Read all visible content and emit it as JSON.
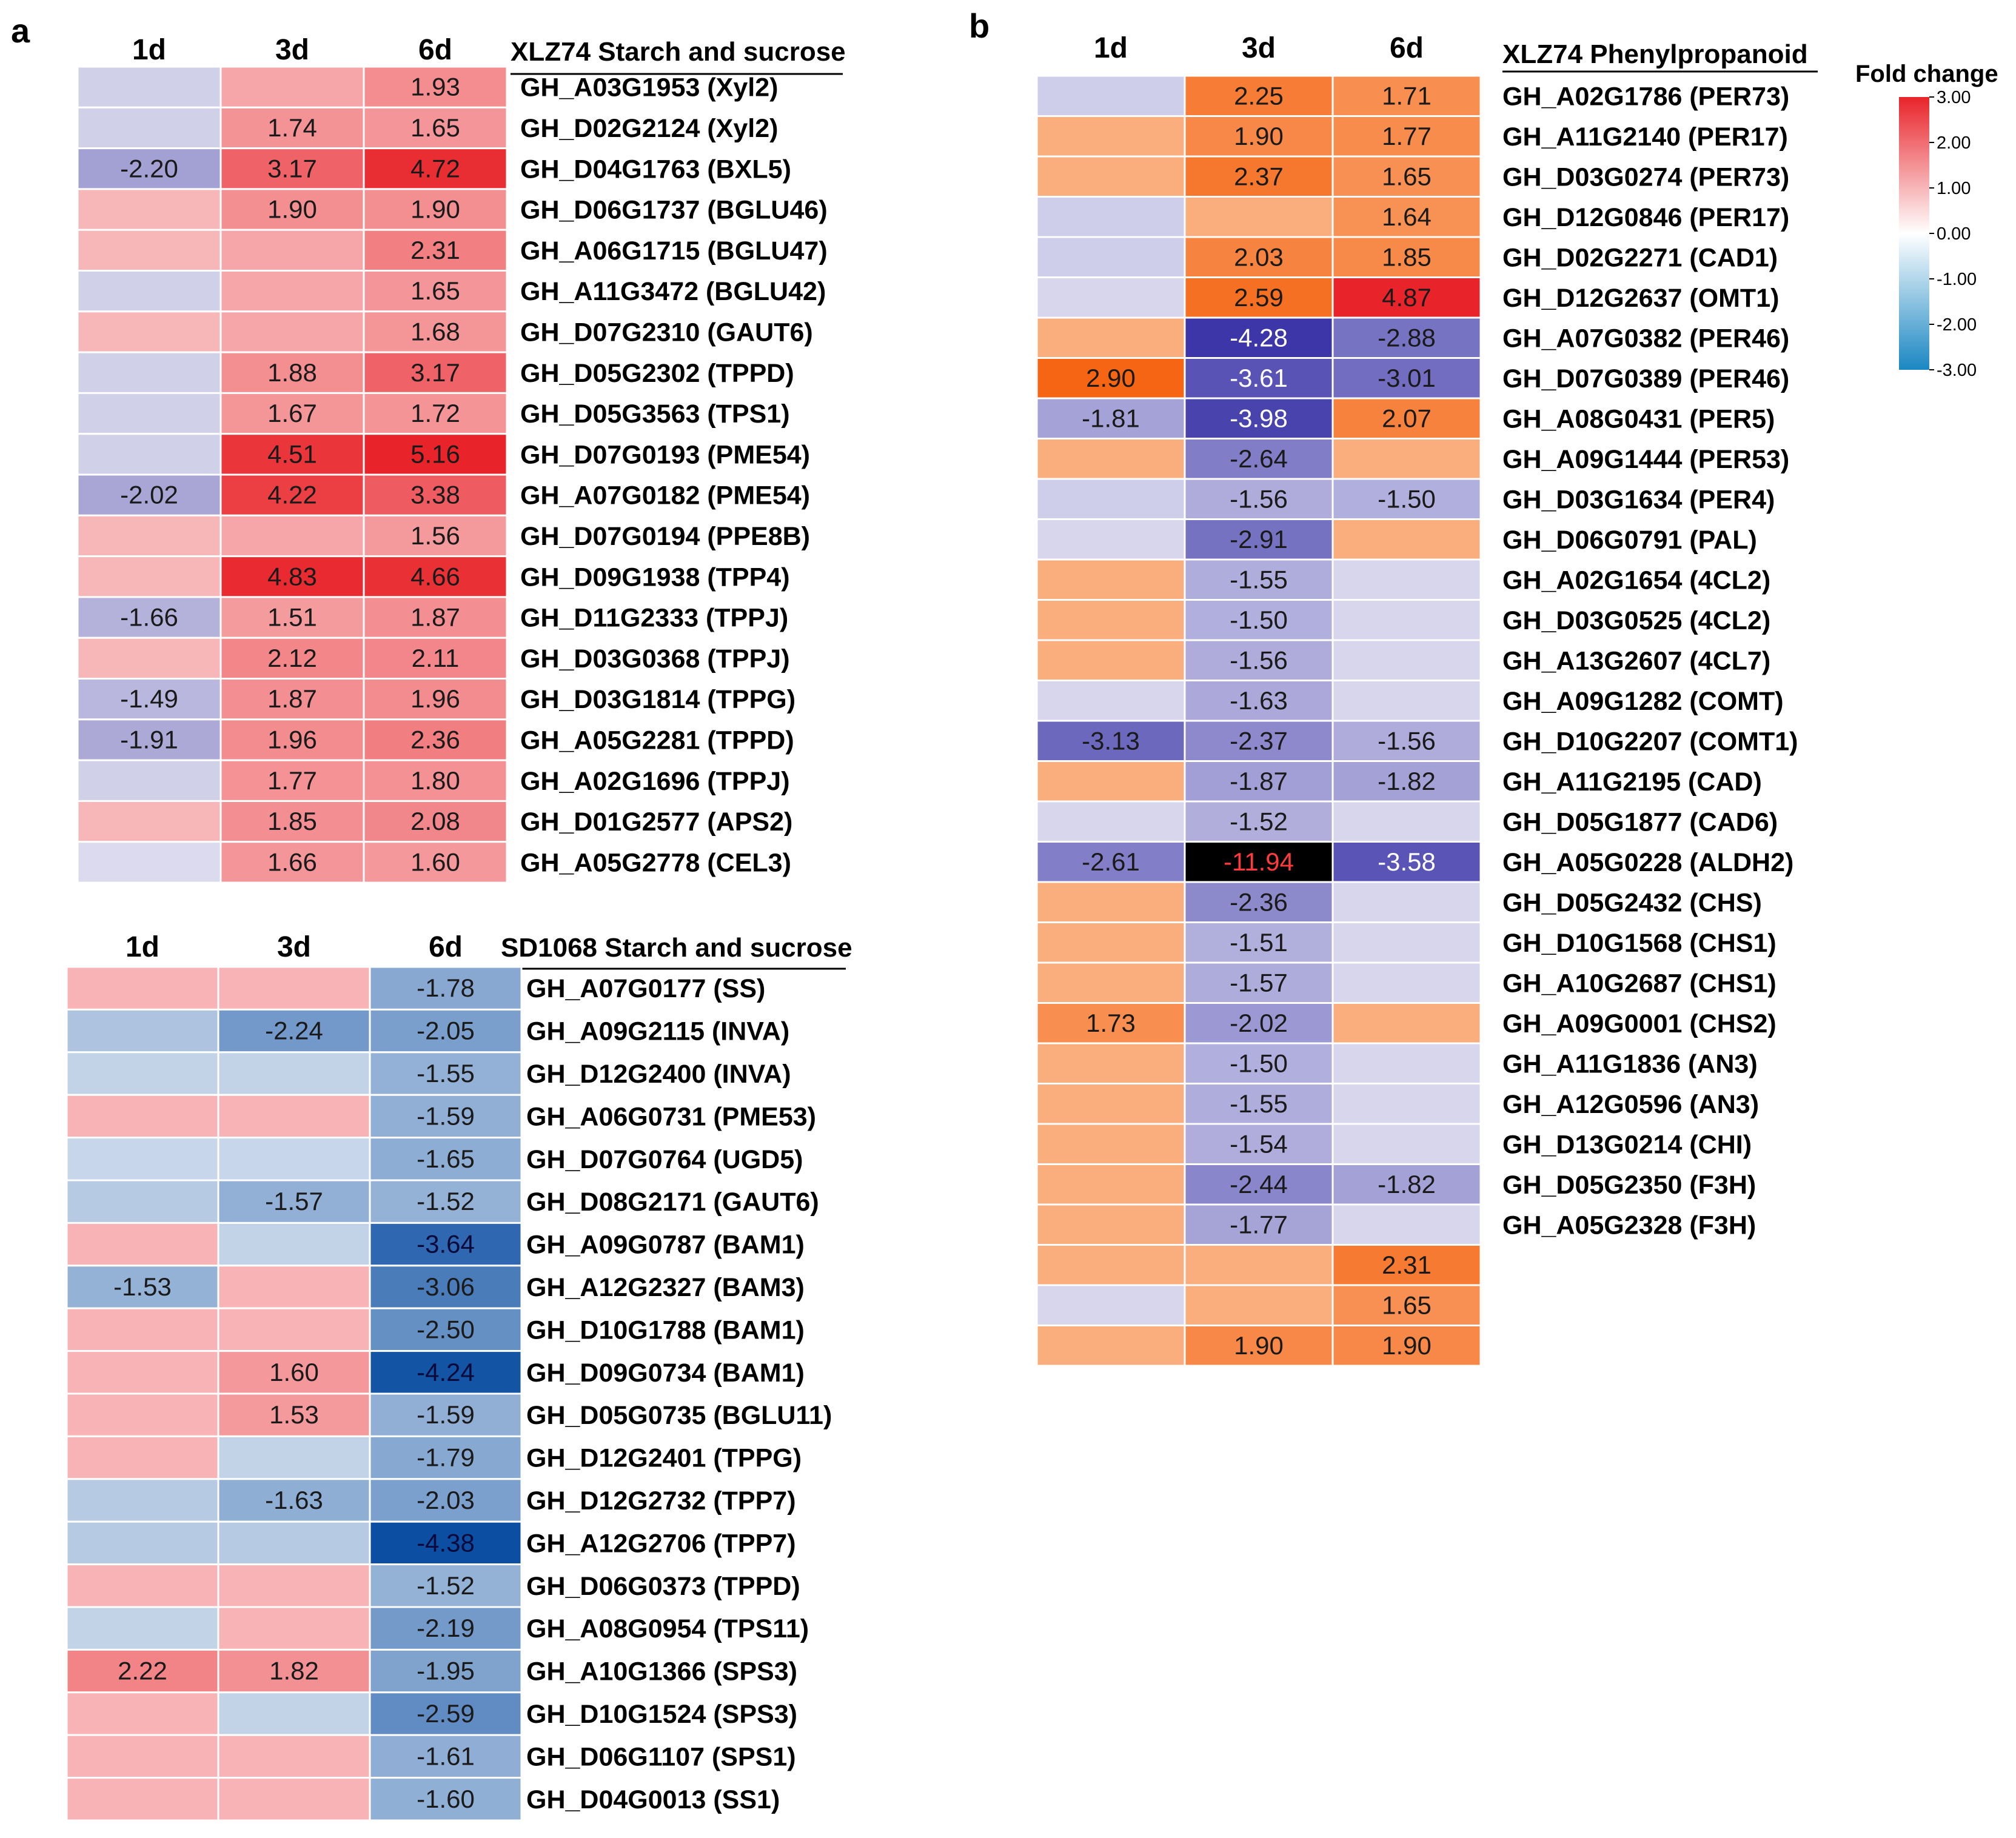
{
  "chart_data": [
    {
      "type": "heatmap",
      "panel": "a",
      "title": "XLZ74 Starch and sucrose",
      "columns": [
        "1d",
        "3d",
        "6d"
      ],
      "colormap": "red",
      "rows": [
        {
          "label": "GH_A03G1953 (Xyl2)",
          "values": [
            -0.7,
            1.2,
            1.93
          ],
          "shown": [
            false,
            false,
            true
          ]
        },
        {
          "label": "GH_D02G2124 (Xyl2)",
          "values": [
            -0.7,
            1.74,
            1.65
          ],
          "shown": [
            false,
            true,
            true
          ]
        },
        {
          "label": "GH_D04G1763 (BXL5)",
          "values": [
            -2.2,
            3.17,
            4.72
          ],
          "shown": [
            true,
            true,
            true
          ]
        },
        {
          "label": "GH_D06G1737 (BGLU46)",
          "values": [
            0.7,
            1.9,
            1.9
          ],
          "shown": [
            false,
            true,
            true
          ]
        },
        {
          "label": "GH_A06G1715 (BGLU47)",
          "values": [
            0.7,
            1.2,
            2.31
          ],
          "shown": [
            false,
            false,
            true
          ]
        },
        {
          "label": "GH_A11G3472 (BGLU42)",
          "values": [
            -0.7,
            1.2,
            1.65
          ],
          "shown": [
            false,
            false,
            true
          ]
        },
        {
          "label": "GH_D07G2310 (GAUT6)",
          "values": [
            0.7,
            1.2,
            1.68
          ],
          "shown": [
            false,
            false,
            true
          ]
        },
        {
          "label": "GH_D05G2302 (TPPD)",
          "values": [
            -0.7,
            1.88,
            3.17
          ],
          "shown": [
            false,
            true,
            true
          ]
        },
        {
          "label": "GH_D05G3563 (TPS1)",
          "values": [
            -0.7,
            1.67,
            1.72
          ],
          "shown": [
            false,
            true,
            true
          ]
        },
        {
          "label": "GH_D07G0193 (PME54)",
          "values": [
            -0.7,
            4.51,
            5.16
          ],
          "shown": [
            false,
            true,
            true
          ]
        },
        {
          "label": "GH_A07G0182 (PME54)",
          "values": [
            -2.02,
            4.22,
            3.38
          ],
          "shown": [
            true,
            true,
            true
          ]
        },
        {
          "label": "GH_D07G0194 (PPE8B)",
          "values": [
            0.7,
            1.2,
            1.56
          ],
          "shown": [
            false,
            false,
            true
          ]
        },
        {
          "label": "GH_D09G1938 (TPP4)",
          "values": [
            0.7,
            4.83,
            4.66
          ],
          "shown": [
            false,
            true,
            true
          ]
        },
        {
          "label": "GH_D11G2333 (TPPJ)",
          "values": [
            -1.66,
            1.51,
            1.87
          ],
          "shown": [
            true,
            true,
            true
          ]
        },
        {
          "label": "GH_D03G0368 (TPPJ)",
          "values": [
            0.7,
            2.12,
            2.11
          ],
          "shown": [
            false,
            true,
            true
          ]
        },
        {
          "label": "GH_D03G1814 (TPPG)",
          "values": [
            -1.49,
            1.87,
            1.96
          ],
          "shown": [
            true,
            true,
            true
          ]
        },
        {
          "label": "GH_A05G2281 (TPPD)",
          "values": [
            -1.91,
            1.96,
            2.36
          ],
          "shown": [
            true,
            true,
            true
          ]
        },
        {
          "label": "GH_A02G1696 (TPPJ)",
          "values": [
            -0.7,
            1.77,
            1.8
          ],
          "shown": [
            false,
            true,
            true
          ]
        },
        {
          "label": "GH_D01G2577 (APS2)",
          "values": [
            0.7,
            1.85,
            2.08
          ],
          "shown": [
            false,
            true,
            true
          ]
        },
        {
          "label": "GH_A05G2778 (CEL3)",
          "values": [
            -0.4,
            1.66,
            1.6
          ],
          "shown": [
            false,
            true,
            true
          ]
        }
      ]
    },
    {
      "type": "heatmap",
      "panel": "",
      "title": "SD1068 Starch and sucrose",
      "columns": [
        "1d",
        "3d",
        "6d"
      ],
      "colormap": "redblue",
      "rows": [
        {
          "label": "GH_A07G0177 (SS)",
          "values": [
            0.8,
            0.8,
            -1.78
          ],
          "shown": [
            false,
            false,
            true
          ]
        },
        {
          "label": "GH_A09G2115 (INVA)",
          "values": [
            -1.0,
            -2.24,
            -2.05
          ],
          "shown": [
            false,
            true,
            true
          ]
        },
        {
          "label": "GH_D12G2400 (INVA)",
          "values": [
            -0.55,
            -0.55,
            -1.55
          ],
          "shown": [
            false,
            false,
            true
          ]
        },
        {
          "label": "GH_A06G0731 (PME53)",
          "values": [
            0.8,
            0.8,
            -1.59
          ],
          "shown": [
            false,
            false,
            true
          ]
        },
        {
          "label": "GH_D07G0764 (UGD5)",
          "values": [
            -0.45,
            -0.45,
            -1.65
          ],
          "shown": [
            false,
            false,
            true
          ]
        },
        {
          "label": "GH_D08G2171 (GAUT6)",
          "values": [
            -0.8,
            -1.57,
            -1.52
          ],
          "shown": [
            false,
            true,
            true
          ]
        },
        {
          "label": "GH_A09G0787 (BAM1)",
          "values": [
            0.8,
            -0.55,
            -3.64
          ],
          "shown": [
            false,
            false,
            true
          ]
        },
        {
          "label": "GH_A12G2327 (BAM3)",
          "values": [
            -1.53,
            0.8,
            -3.06
          ],
          "shown": [
            true,
            false,
            true
          ]
        },
        {
          "label": "GH_D10G1788 (BAM1)",
          "values": [
            0.8,
            0.8,
            -2.5
          ],
          "shown": [
            false,
            false,
            true
          ]
        },
        {
          "label": "GH_D09G0734 (BAM1)",
          "values": [
            0.8,
            1.6,
            -4.24
          ],
          "shown": [
            false,
            true,
            true
          ]
        },
        {
          "label": "GH_D05G0735 (BGLU11)",
          "values": [
            0.8,
            1.53,
            -1.59
          ],
          "shown": [
            false,
            true,
            true
          ]
        },
        {
          "label": "GH_D12G2401 (TPPG)",
          "values": [
            0.8,
            -0.55,
            -1.79
          ],
          "shown": [
            false,
            false,
            true
          ]
        },
        {
          "label": "GH_D12G2732 (TPP7)",
          "values": [
            -0.8,
            -1.63,
            -2.03
          ],
          "shown": [
            false,
            true,
            true
          ]
        },
        {
          "label": "GH_A12G2706 (TPP7)",
          "values": [
            -0.8,
            -0.8,
            -4.38
          ],
          "shown": [
            false,
            false,
            true
          ]
        },
        {
          "label": "GH_D06G0373 (TPPD)",
          "values": [
            0.8,
            0.8,
            -1.52
          ],
          "shown": [
            false,
            false,
            true
          ]
        },
        {
          "label": "GH_A08G0954 (TPS11)",
          "values": [
            -0.55,
            0.8,
            -2.19
          ],
          "shown": [
            false,
            false,
            true
          ]
        },
        {
          "label": "GH_A10G1366 (SPS3)",
          "values": [
            2.22,
            1.82,
            -1.95
          ],
          "shown": [
            true,
            true,
            true
          ]
        },
        {
          "label": "GH_D10G1524 (SPS3)",
          "values": [
            0.8,
            -0.55,
            -2.59
          ],
          "shown": [
            false,
            false,
            true
          ]
        },
        {
          "label": "GH_D06G1107 (SPS1)",
          "values": [
            0.8,
            0.8,
            -1.61
          ],
          "shown": [
            false,
            false,
            true
          ]
        },
        {
          "label": "GH_D04G0013 (SS1)",
          "values": [
            0.8,
            0.8,
            -1.6
          ],
          "shown": [
            false,
            false,
            true
          ]
        }
      ]
    },
    {
      "type": "heatmap",
      "panel": "b",
      "title": "XLZ74 Phenylpropanoid",
      "columns": [
        "1d",
        "3d",
        "6d"
      ],
      "colormap": "orangeblue",
      "rows": [
        {
          "label": "GH_A02G1786 (PER73)",
          "values": [
            -0.8,
            2.25,
            1.71
          ],
          "shown": [
            false,
            true,
            true
          ]
        },
        {
          "label": "GH_A11G2140 (PER17)",
          "values": [
            0.8,
            1.9,
            1.77
          ],
          "shown": [
            false,
            true,
            true
          ]
        },
        {
          "label": "GH_D03G0274 (PER73)",
          "values": [
            0.8,
            2.37,
            1.65
          ],
          "shown": [
            false,
            true,
            true
          ]
        },
        {
          "label": "GH_D12G0846 (PER17)",
          "values": [
            -0.8,
            0.8,
            1.64
          ],
          "shown": [
            false,
            false,
            true
          ]
        },
        {
          "label": "GH_D02G2271 (CAD1)",
          "values": [
            -0.8,
            2.03,
            1.85
          ],
          "shown": [
            false,
            true,
            true
          ]
        },
        {
          "label": "GH_D12G2637 (OMT1)",
          "values": [
            -0.6,
            2.59,
            4.87
          ],
          "shown": [
            false,
            true,
            true
          ]
        },
        {
          "label": "GH_A07G0382 (PER46)",
          "values": [
            0.8,
            -4.28,
            -2.88
          ],
          "shown": [
            false,
            true,
            true
          ]
        },
        {
          "label": "GH_D07G0389 (PER46)",
          "values": [
            2.9,
            -3.61,
            -3.01
          ],
          "shown": [
            true,
            true,
            true
          ]
        },
        {
          "label": "GH_A08G0431 (PER5)",
          "values": [
            -1.81,
            -3.98,
            2.07
          ],
          "shown": [
            true,
            true,
            true
          ]
        },
        {
          "label": "GH_A09G1444 (PER53)",
          "values": [
            0.8,
            -2.64,
            0.8
          ],
          "shown": [
            false,
            true,
            false
          ]
        },
        {
          "label": "GH_D03G1634 (PER4)",
          "values": [
            -0.8,
            -1.56,
            -1.5
          ],
          "shown": [
            false,
            true,
            true
          ]
        },
        {
          "label": "GH_D06G0791 (PAL)",
          "values": [
            -0.6,
            -2.91,
            0.8
          ],
          "shown": [
            false,
            true,
            false
          ]
        },
        {
          "label": "GH_A02G1654 (4CL2)",
          "values": [
            0.8,
            -1.55,
            -0.6
          ],
          "shown": [
            false,
            true,
            false
          ]
        },
        {
          "label": "GH_D03G0525 (4CL2)",
          "values": [
            0.8,
            -1.5,
            -0.6
          ],
          "shown": [
            false,
            true,
            false
          ]
        },
        {
          "label": "GH_A13G2607 (4CL7)",
          "values": [
            0.8,
            -1.56,
            -0.6
          ],
          "shown": [
            false,
            true,
            false
          ]
        },
        {
          "label": "GH_A09G1282 (COMT)",
          "values": [
            -0.6,
            -1.63,
            -0.6
          ],
          "shown": [
            false,
            true,
            false
          ]
        },
        {
          "label": "GH_D10G2207 (COMT1)",
          "values": [
            -3.13,
            -2.37,
            -1.56
          ],
          "shown": [
            true,
            true,
            true
          ]
        },
        {
          "label": "GH_A11G2195 (CAD)",
          "values": [
            0.8,
            -1.87,
            -1.82
          ],
          "shown": [
            false,
            true,
            true
          ]
        },
        {
          "label": "GH_D05G1877 (CAD6)",
          "values": [
            -0.6,
            -1.52,
            -0.6
          ],
          "shown": [
            false,
            true,
            false
          ]
        },
        {
          "label": "GH_A05G0228 (ALDH2)",
          "values": [
            -2.61,
            -11.94,
            -3.58
          ],
          "shown": [
            true,
            true,
            true
          ]
        },
        {
          "label": "GH_D05G2432 (CHS)",
          "values": [
            0.8,
            -2.36,
            -0.6
          ],
          "shown": [
            false,
            true,
            false
          ]
        },
        {
          "label": "GH_D10G1568 (CHS1)",
          "values": [
            0.8,
            -1.51,
            -0.6
          ],
          "shown": [
            false,
            true,
            false
          ]
        },
        {
          "label": "GH_A10G2687 (CHS1)",
          "values": [
            0.8,
            -1.57,
            -0.6
          ],
          "shown": [
            false,
            true,
            false
          ]
        },
        {
          "label": "GH_A09G0001 (CHS2)",
          "values": [
            1.73,
            -2.02,
            0.8
          ],
          "shown": [
            true,
            true,
            false
          ]
        },
        {
          "label": "GH_A11G1836 (AN3)",
          "values": [
            0.8,
            -1.5,
            -0.6
          ],
          "shown": [
            false,
            true,
            false
          ]
        },
        {
          "label": "GH_A12G0596 (AN3)",
          "values": [
            0.8,
            -1.55,
            -0.6
          ],
          "shown": [
            false,
            true,
            false
          ]
        },
        {
          "label": "GH_D13G0214 (CHI)",
          "values": [
            0.8,
            -1.54,
            -0.6
          ],
          "shown": [
            false,
            true,
            false
          ]
        },
        {
          "label": "GH_D05G2350 (F3H)",
          "values": [
            0.8,
            -2.44,
            -1.82
          ],
          "shown": [
            false,
            true,
            true
          ]
        },
        {
          "label": "GH_A05G2328 (F3H)",
          "values": [
            0.8,
            -1.77,
            -0.6
          ],
          "shown": [
            false,
            true,
            false
          ]
        },
        {
          "label": "",
          "values": [
            0.8,
            0.8,
            2.31
          ],
          "shown": [
            false,
            false,
            true
          ]
        },
        {
          "label": "",
          "values": [
            -0.6,
            0.8,
            1.65
          ],
          "shown": [
            false,
            false,
            true
          ]
        },
        {
          "label": "",
          "values": [
            0.8,
            1.9,
            1.9
          ],
          "shown": [
            false,
            true,
            true
          ]
        }
      ]
    }
  ],
  "legend": {
    "title": "Fold change",
    "ticks": [
      "3.00",
      "2.00",
      "1.00",
      "0.00",
      "-1.00",
      "-2.00",
      "-3.00"
    ],
    "colors": [
      "#e8242a",
      "#ffffff",
      "#1a87c2"
    ]
  },
  "colors": {
    "redblue_pos": "#e8242a",
    "redblue_neg": "#0b4ea2",
    "orange_pos": "#f5620f",
    "purple_neg": "#3b35a8",
    "extreme": "#000000",
    "extreme_text": "#ff3b3b"
  }
}
